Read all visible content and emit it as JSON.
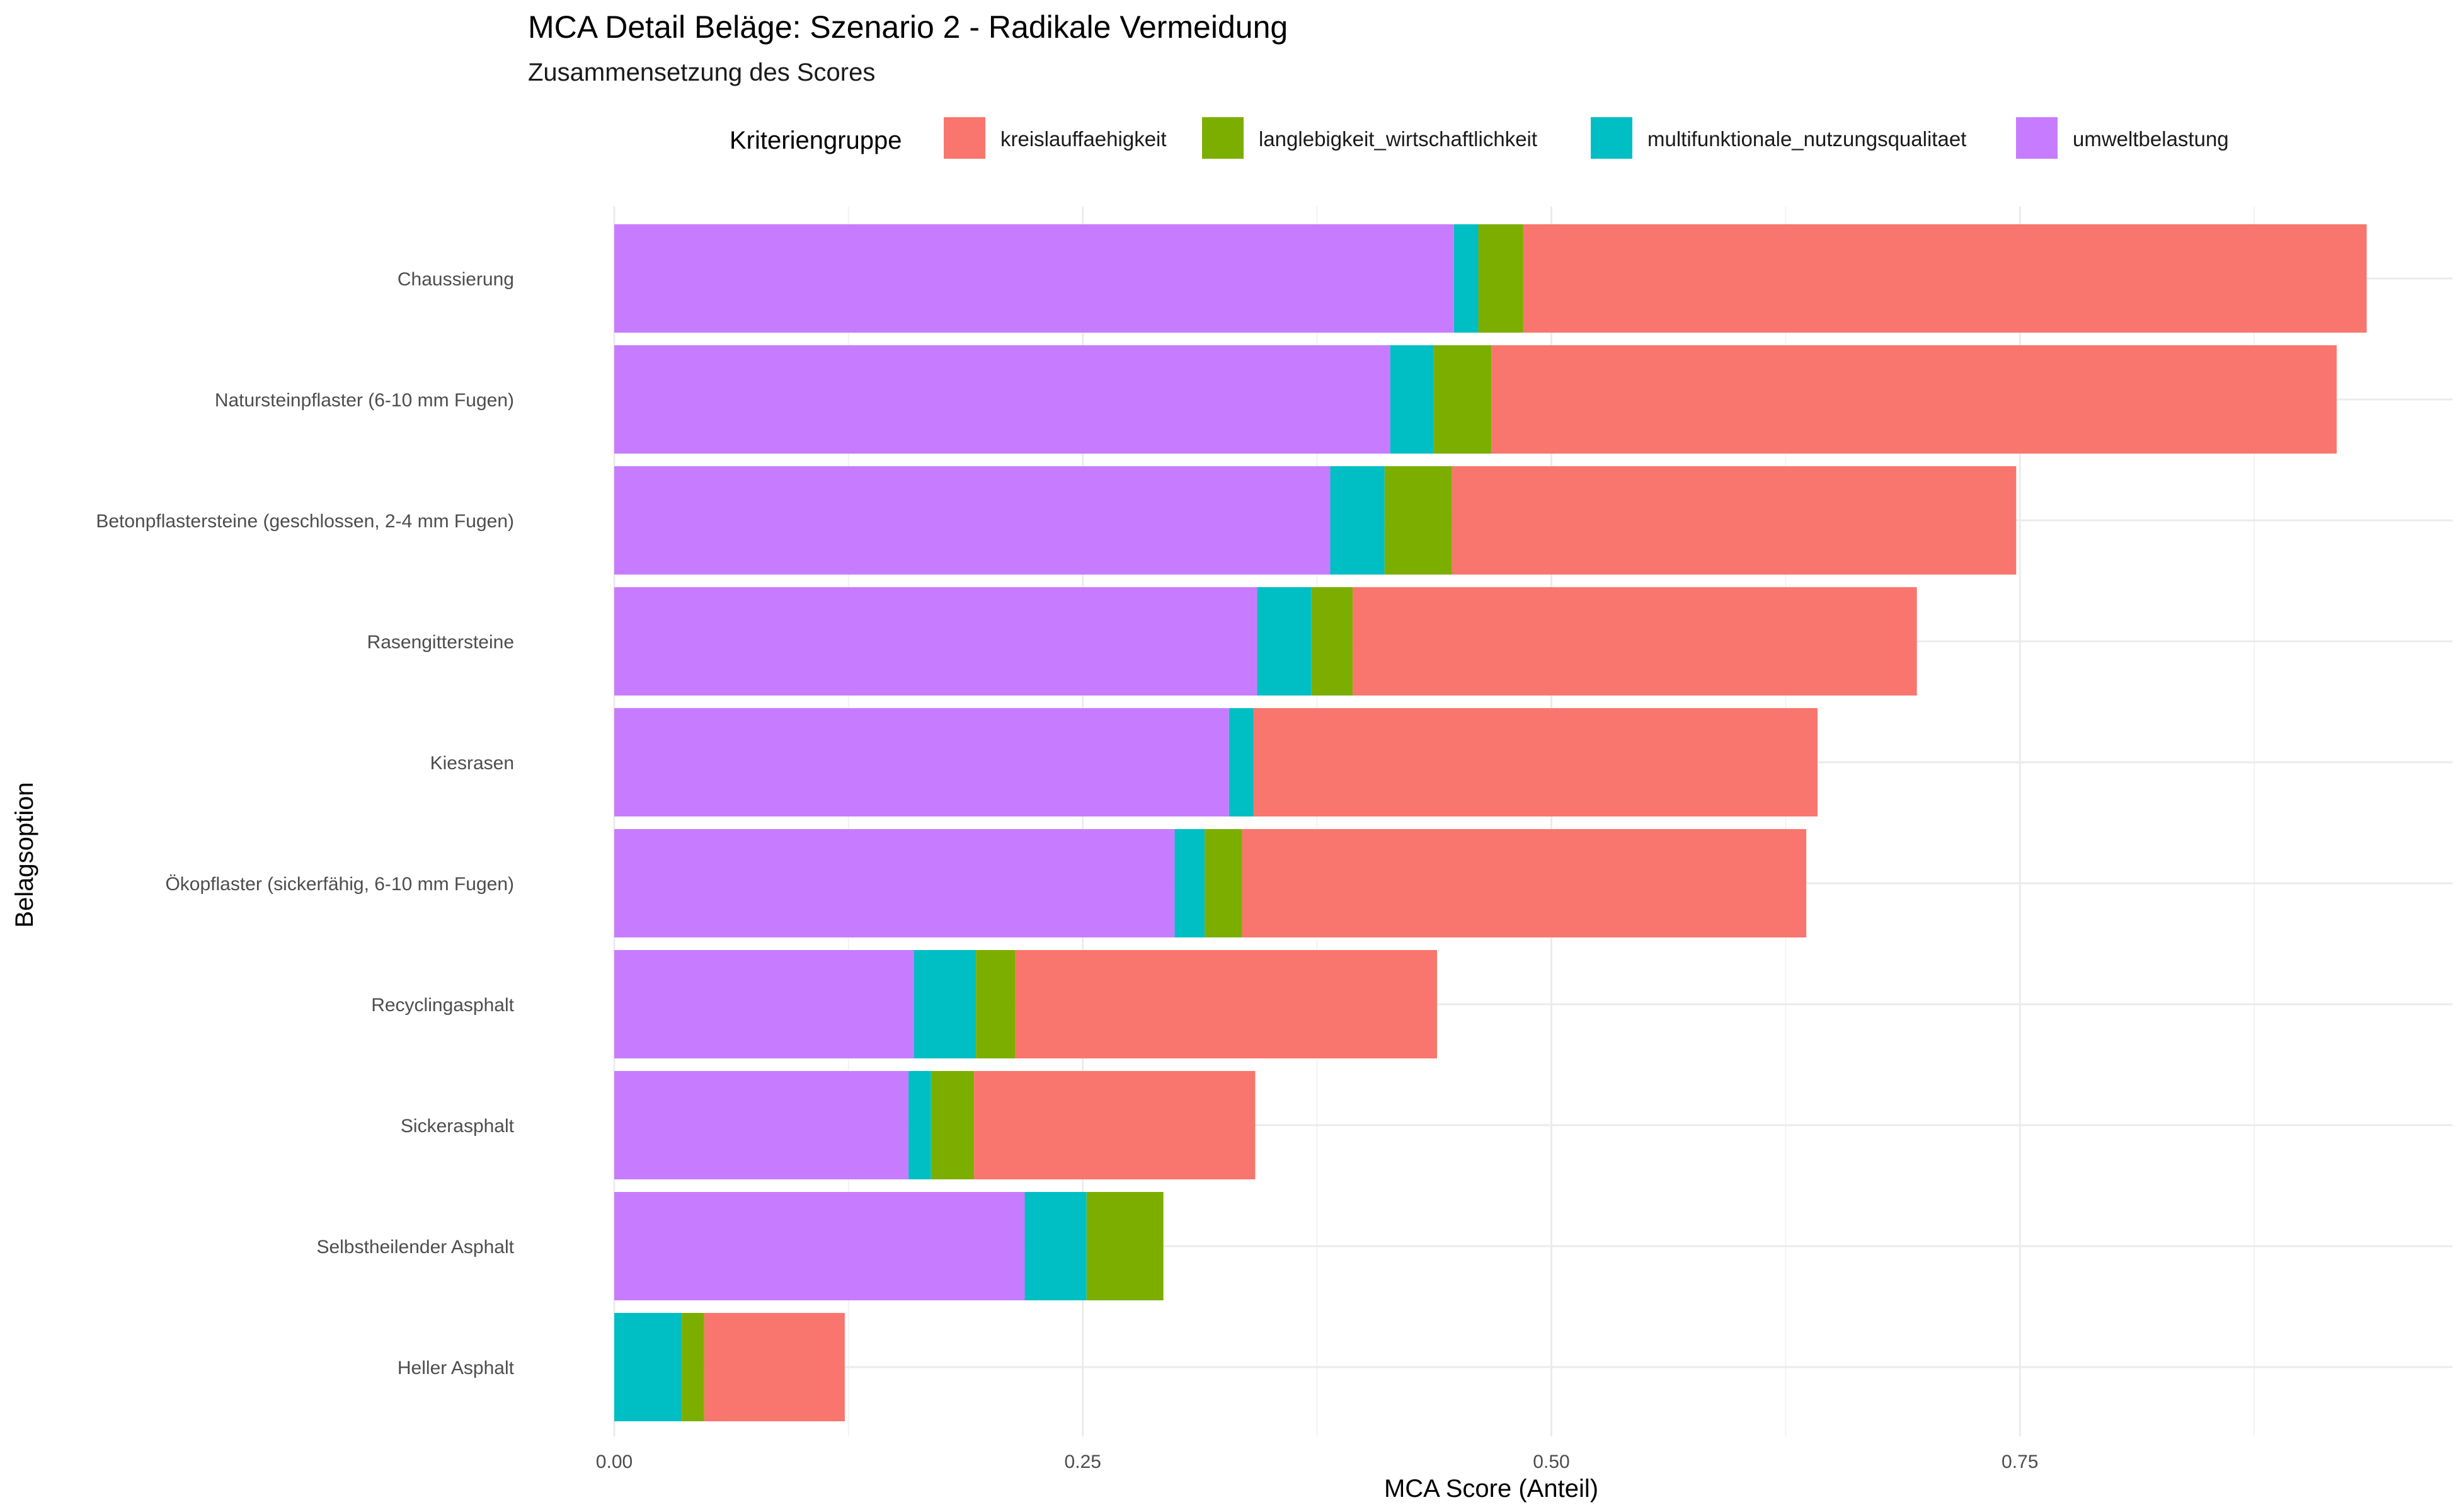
{
  "chart_data": {
    "type": "bar",
    "orientation": "horizontal",
    "stacked": true,
    "title": "MCA Detail Beläge: Szenario 2 - Radikale Vermeidung",
    "subtitle": "Zusammensetzung des Scores",
    "xlabel": "MCA Score (Anteil)",
    "ylabel": "Belagsoption",
    "xlim": [
      0,
      0.94
    ],
    "x_ticks": [
      "0.00",
      "0.25",
      "0.50",
      "0.75"
    ],
    "x_tick_values": [
      0,
      0.25,
      0.5,
      0.75
    ],
    "grid": true,
    "legend": {
      "title": "Kriteriengruppe",
      "position": "top",
      "entries": [
        {
          "name": "kreislauffaehigkeit",
          "color": "#F8766D"
        },
        {
          "name": "langlebigkeit_wirtschaftlichkeit",
          "color": "#7CAE00"
        },
        {
          "name": "multifunktionale_nutzungsqualitaet",
          "color": "#00BFC4"
        },
        {
          "name": "umweltbelastung",
          "color": "#C77CFF"
        }
      ]
    },
    "stack_order": [
      "umweltbelastung",
      "multifunktionale_nutzungsqualitaet",
      "langlebigkeit_wirtschaftlichkeit",
      "kreislauffaehigkeit"
    ],
    "categories": [
      "Chaussierung",
      "Natursteinpflaster (6-10 mm Fugen)",
      "Betonpflastersteine (geschlossen, 2-4 mm Fugen)",
      "Rasengittersteine",
      "Kiesrasen",
      "Ökopflaster (sickerfähig, 6-10 mm Fugen)",
      "Recyclingasphalt",
      "Sickerasphalt",
      "Selbstheilender Asphalt",
      "Heller Asphalt"
    ],
    "series": [
      {
        "name": "umweltbelastung",
        "values": [
          0.448,
          0.414,
          0.382,
          0.343,
          0.328,
          0.299,
          0.16,
          0.157,
          0.219,
          0.0
        ]
      },
      {
        "name": "multifunktionale_nutzungsqualitaet",
        "values": [
          0.013,
          0.023,
          0.029,
          0.029,
          0.013,
          0.016,
          0.033,
          0.012,
          0.033,
          0.036
        ]
      },
      {
        "name": "langlebigkeit_wirtschaftlichkeit",
        "values": [
          0.024,
          0.031,
          0.036,
          0.022,
          0.0,
          0.02,
          0.021,
          0.023,
          0.041,
          0.012
        ]
      },
      {
        "name": "kreislauffaehigkeit",
        "values": [
          0.45,
          0.451,
          0.301,
          0.301,
          0.301,
          0.301,
          0.225,
          0.15,
          0.0,
          0.075
        ]
      }
    ]
  }
}
